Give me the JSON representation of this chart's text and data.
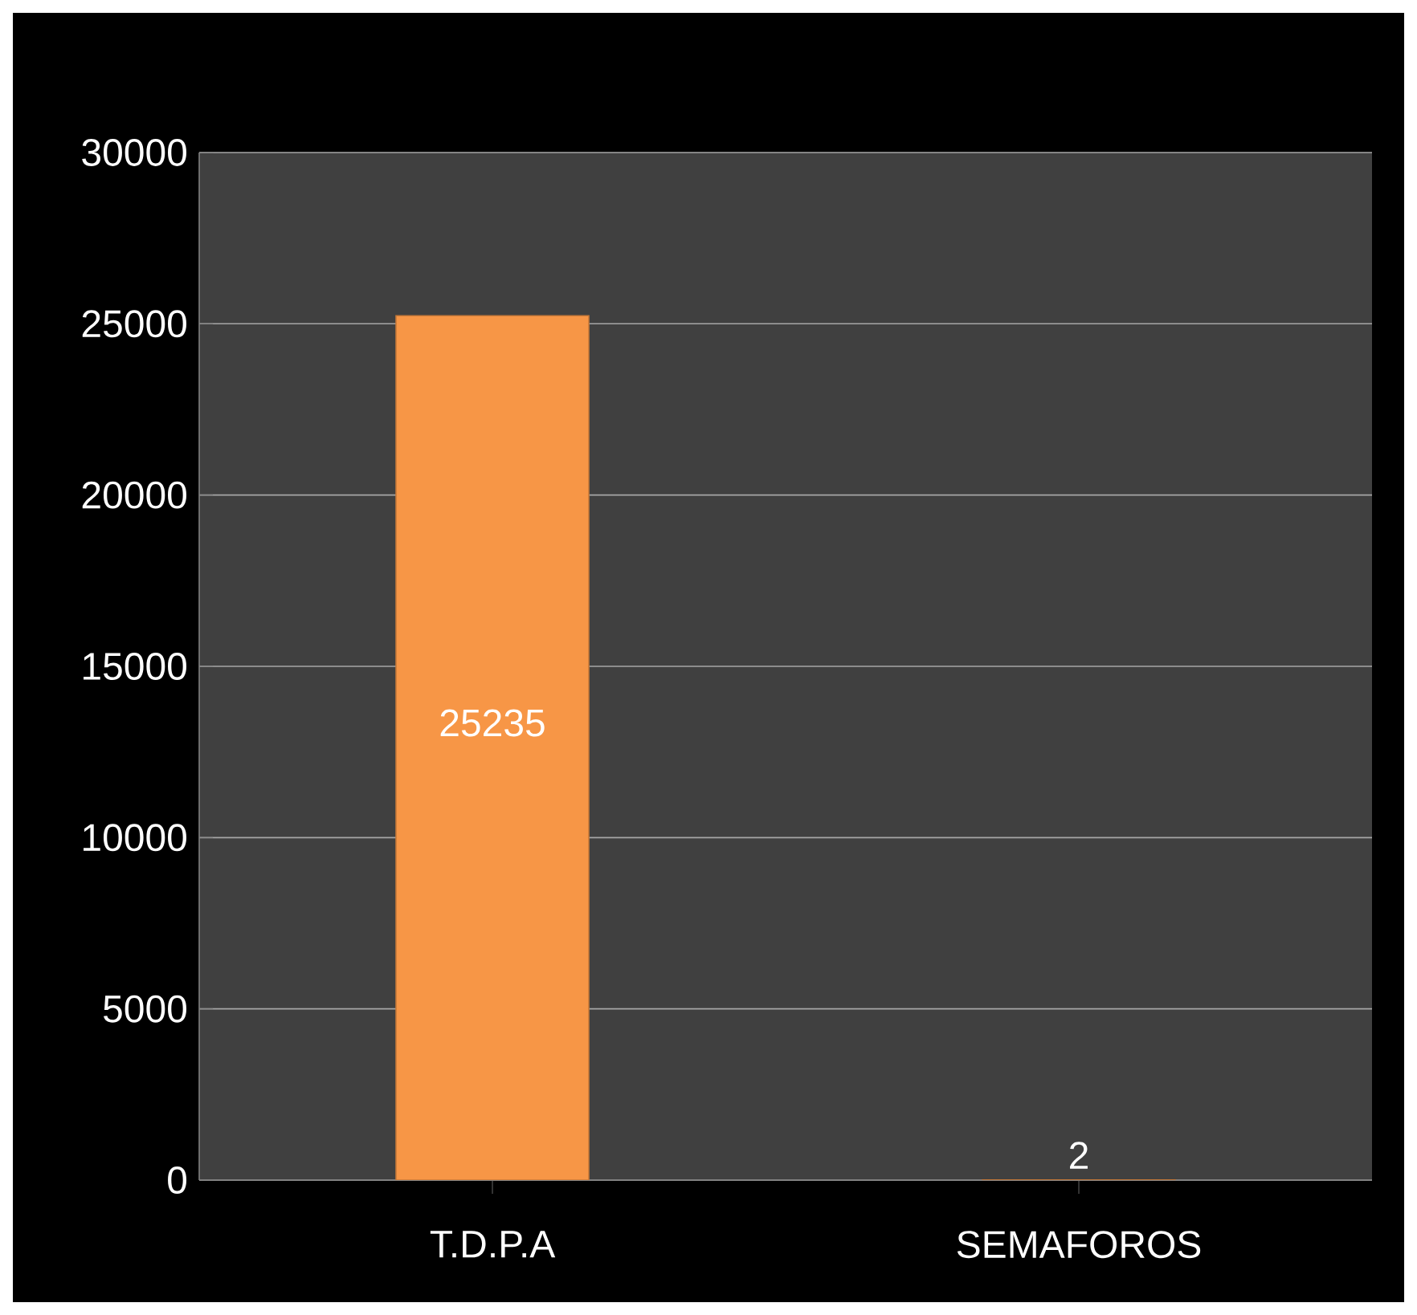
{
  "chart_data": {
    "type": "bar",
    "categories": [
      "T.D.P.A",
      "SEMAFOROS"
    ],
    "values": [
      25235,
      2
    ],
    "color": "#f79646",
    "ylim": [
      0,
      30000
    ],
    "yticks": [
      0,
      5000,
      10000,
      15000,
      20000,
      25000,
      30000
    ],
    "grid": "y",
    "data_labels": true
  }
}
